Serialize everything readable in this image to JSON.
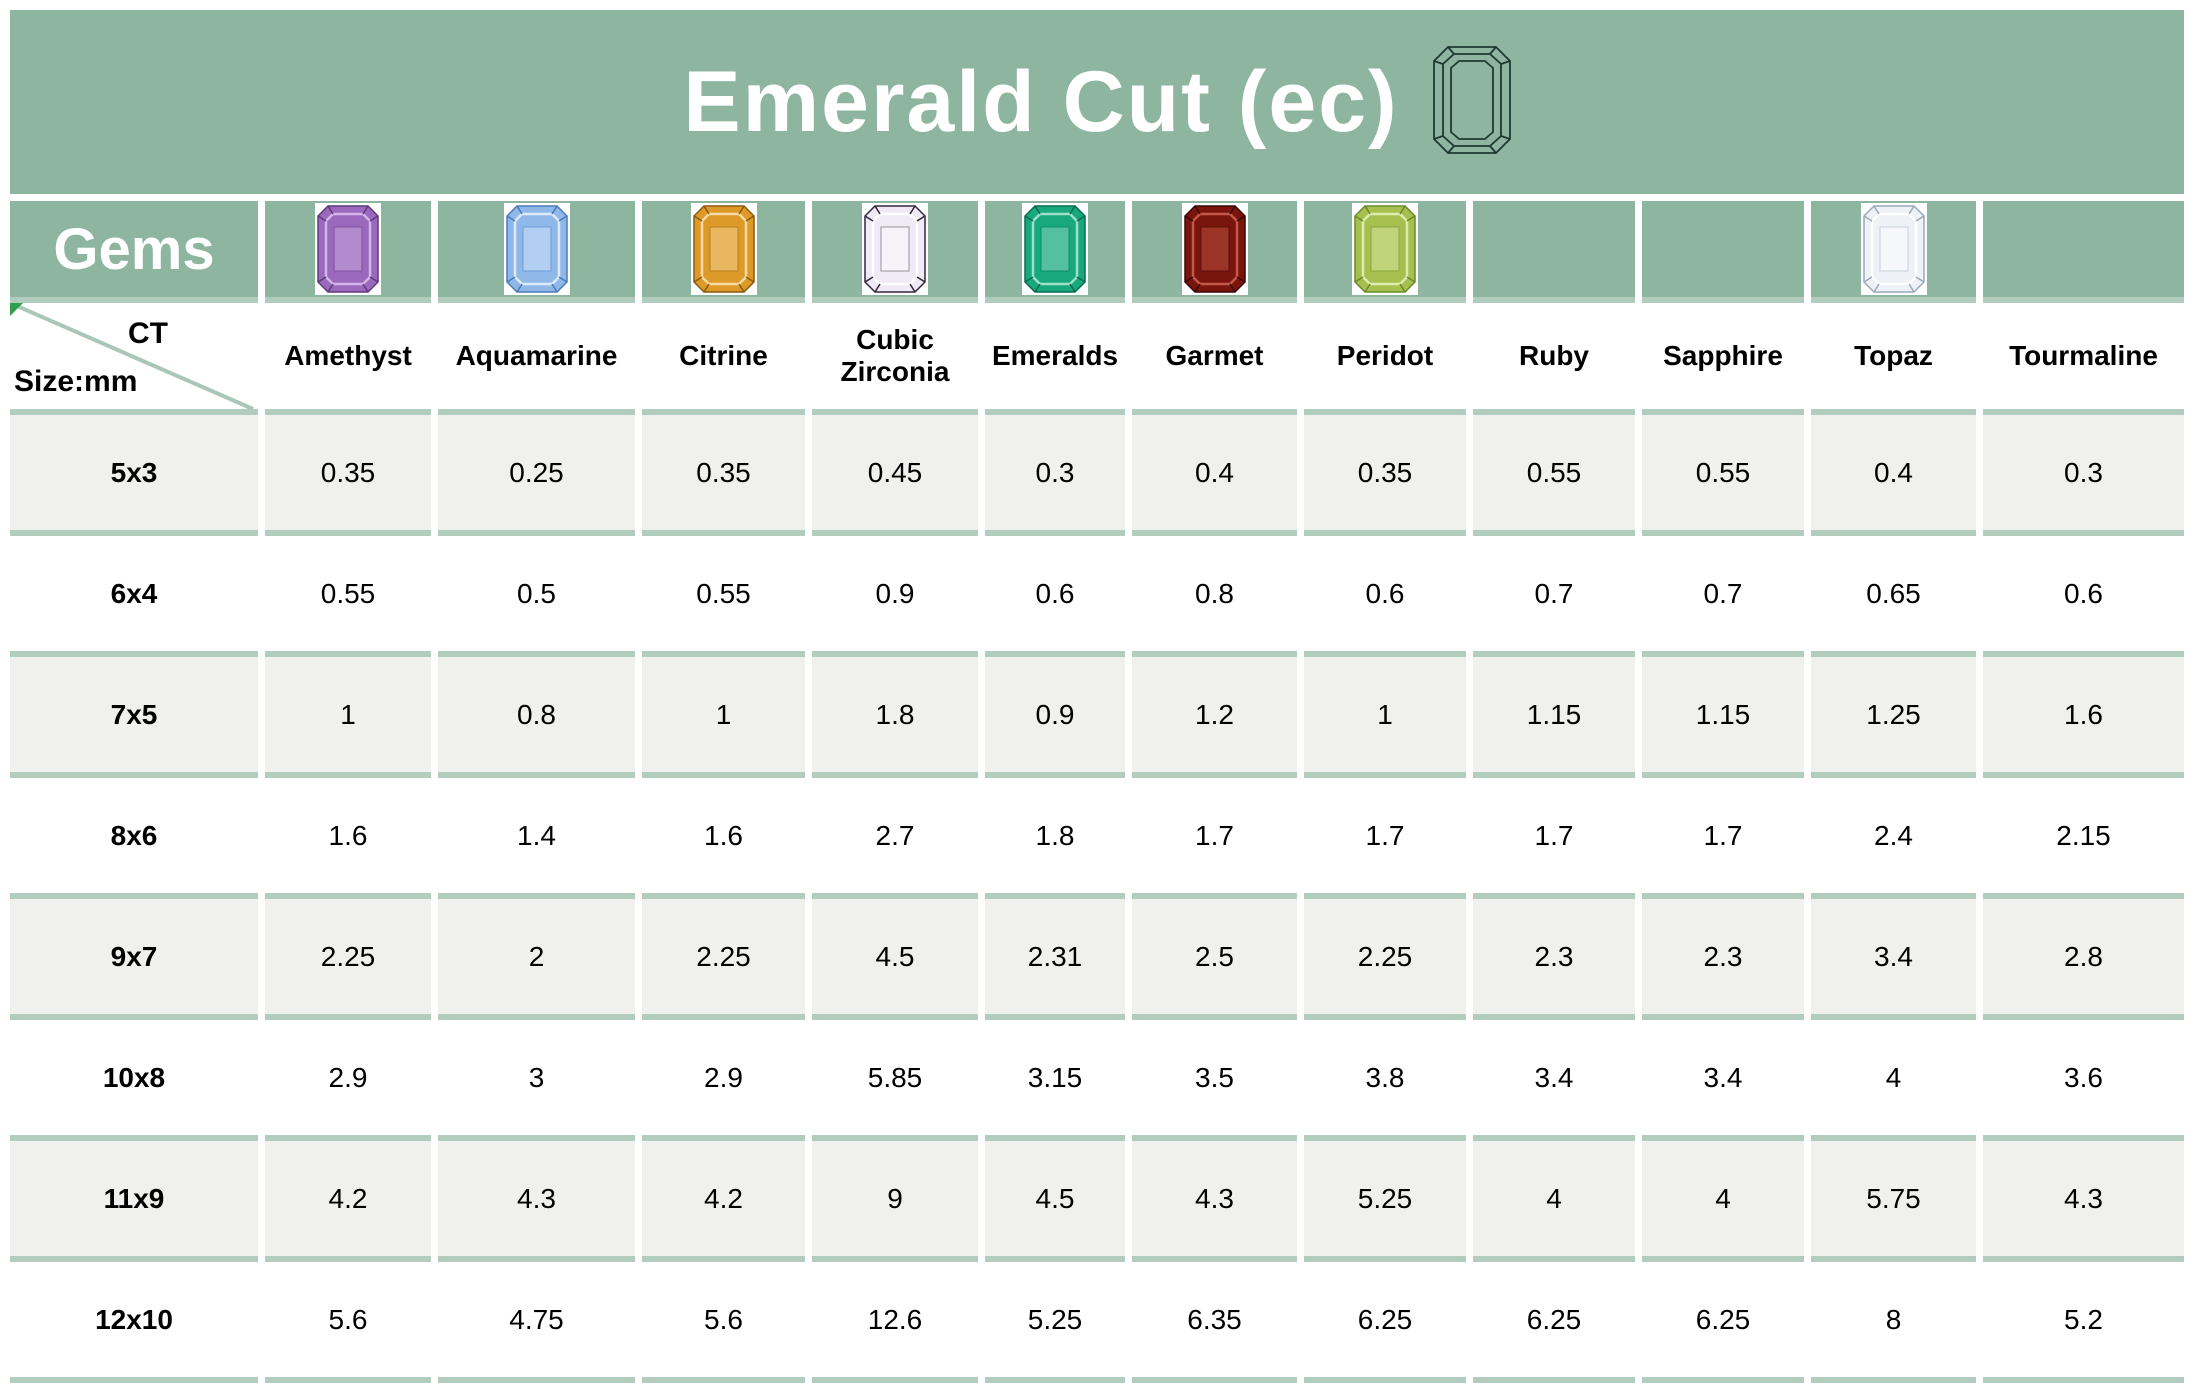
{
  "title": "Emerald Cut (ec)",
  "header": {
    "gems_label": "Gems",
    "corner_top": "CT",
    "corner_bottom": "Size:mm"
  },
  "icons": {
    "title_icon": "emerald-cut-outline-icon",
    "corner_marker": "comment-triangle-icon",
    "gem_icon_suffix": "-gem-icon"
  },
  "colors": {
    "header_green": "#8db5a0",
    "row_divider_green": "#b2ccbe",
    "alt_row_gray": "#f0f0ef",
    "diagonal_line_green": "#a9c6b8",
    "comment_marker_green": "#2e9e4f",
    "icon_stroke": "#1e3a33",
    "title_text": "#ffffff",
    "body_text": "#000000"
  },
  "gem_images": [
    {
      "column": "Amethyst",
      "base": "#9a68bc",
      "light": "#d4b4e8",
      "dark": "#5e3a7a"
    },
    {
      "column": "Aquamarine",
      "base": "#8fb8e8",
      "light": "#ddeafb",
      "dark": "#4a7ab8"
    },
    {
      "column": "Citrine",
      "base": "#dd9a28",
      "light": "#f6dca4",
      "dark": "#8a5a10"
    },
    {
      "column": "Cubic Zirconia",
      "base": "#f0eaf6",
      "light": "#ffffff",
      "dark": "#35243e"
    },
    {
      "column": "Emeralds",
      "base": "#17a87e",
      "light": "#9fdfc9",
      "dark": "#0a6a50"
    },
    {
      "column": "Garmet",
      "base": "#7a150e",
      "light": "#c05a46",
      "dark": "#3a0806"
    },
    {
      "column": "Peridot",
      "base": "#a6c050",
      "light": "#dcebae",
      "dark": "#6a8a28"
    },
    {
      "column": "Topaz",
      "base": "#eef2f6",
      "light": "#ffffff",
      "dark": "#9aa8b8"
    }
  ],
  "chart_data": {
    "type": "table",
    "title": "Emerald Cut (ec)",
    "column_header_label": "CT",
    "row_header_label": "Size:mm",
    "columns": [
      "Amethyst",
      "Aquamarine",
      "Citrine",
      "Cubic Zirconia",
      "Emeralds",
      "Garmet",
      "Peridot",
      "Ruby",
      "Sapphire",
      "Topaz",
      "Tourmaline"
    ],
    "rows": [
      {
        "size": "5x3",
        "values": [
          "0.35",
          "0.25",
          "0.35",
          "0.45",
          "0.3",
          "0.4",
          "0.35",
          "0.55",
          "0.55",
          "0.4",
          "0.3"
        ]
      },
      {
        "size": "6x4",
        "values": [
          "0.55",
          "0.5",
          "0.55",
          "0.9",
          "0.6",
          "0.8",
          "0.6",
          "0.7",
          "0.7",
          "0.65",
          "0.6"
        ]
      },
      {
        "size": "7x5",
        "values": [
          "1",
          "0.8",
          "1",
          "1.8",
          "0.9",
          "1.2",
          "1",
          "1.15",
          "1.15",
          "1.25",
          "1.6"
        ]
      },
      {
        "size": "8x6",
        "values": [
          "1.6",
          "1.4",
          "1.6",
          "2.7",
          "1.8",
          "1.7",
          "1.7",
          "1.7",
          "1.7",
          "2.4",
          "2.15"
        ]
      },
      {
        "size": "9x7",
        "values": [
          "2.25",
          "2",
          "2.25",
          "4.5",
          "2.31",
          "2.5",
          "2.25",
          "2.3",
          "2.3",
          "3.4",
          "2.8"
        ]
      },
      {
        "size": "10x8",
        "values": [
          "2.9",
          "3",
          "2.9",
          "5.85",
          "3.15",
          "3.5",
          "3.8",
          "3.4",
          "3.4",
          "4",
          "3.6"
        ]
      },
      {
        "size": "11x9",
        "values": [
          "4.2",
          "4.3",
          "4.2",
          "9",
          "4.5",
          "4.3",
          "5.25",
          "4",
          "4",
          "5.75",
          "4.3"
        ]
      },
      {
        "size": "12x10",
        "values": [
          "5.6",
          "4.75",
          "5.6",
          "12.6",
          "5.25",
          "6.35",
          "6.25",
          "6.25",
          "6.25",
          "8",
          "5.2"
        ]
      }
    ]
  }
}
